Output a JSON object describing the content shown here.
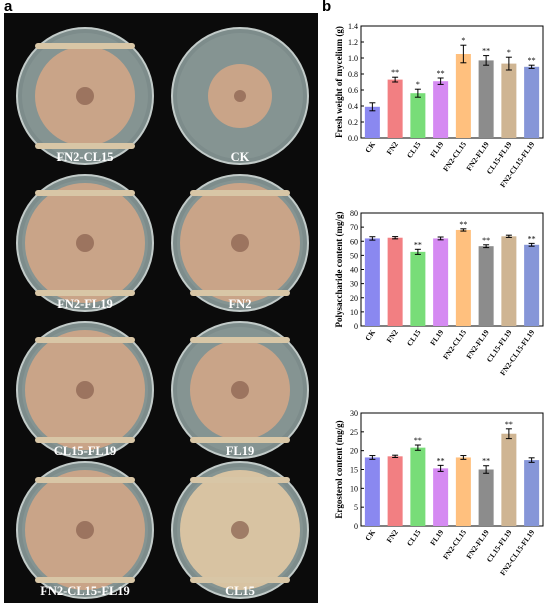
{
  "panel_a": {
    "letter": "a",
    "plates": [
      {
        "label": "FN2-CL15",
        "colony": "mid",
        "streaks": 2
      },
      {
        "label": "CK",
        "colony": "small",
        "streaks": 0
      },
      {
        "label": "FN2-FL19",
        "colony": "large",
        "streaks": 2
      },
      {
        "label": "FN2",
        "colony": "large",
        "streaks": 2
      },
      {
        "label": "CL15-FL19",
        "colony": "large",
        "streaks": 2
      },
      {
        "label": "FL19",
        "colony": "mid",
        "streaks": 2
      },
      {
        "label": "FN2-CL15-FL19",
        "colony": "large",
        "streaks": 2
      },
      {
        "label": "CL15",
        "colony": "large-pale",
        "streaks": 2
      }
    ],
    "colors": {
      "agar": "#7d8c8b",
      "colony": "#c9a488",
      "colony_center": "#8c6452",
      "streak": "#d8c6a6"
    }
  },
  "panel_b": {
    "letter": "b"
  },
  "chart_data": [
    {
      "type": "bar",
      "ylabel": "Fresh weight of mycelium (g)",
      "ylim": [
        0,
        1.4
      ],
      "yticks": [
        "0.0",
        "0.2",
        "0.4",
        "0.6",
        "0.8",
        "1.0",
        "1.2",
        "1.4"
      ],
      "categories": [
        "CK",
        "FN2",
        "CL15",
        "FL19",
        "FN2-CL15",
        "FN2-FL19",
        "CL15-FL19",
        "FN2-CL15-FL19"
      ],
      "values": [
        0.39,
        0.73,
        0.56,
        0.71,
        1.05,
        0.97,
        0.93,
        0.89
      ],
      "errors": [
        0.05,
        0.03,
        0.05,
        0.04,
        0.11,
        0.06,
        0.08,
        0.02
      ],
      "significance": [
        "",
        "**",
        "*",
        "**",
        "*",
        "**",
        "*",
        "**"
      ]
    },
    {
      "type": "bar",
      "ylabel": "Polysaccharide content (mg/g)",
      "ylim": [
        0,
        80
      ],
      "yticks": [
        "0",
        "10",
        "20",
        "30",
        "40",
        "50",
        "60",
        "70",
        "80"
      ],
      "categories": [
        "CK",
        "FN2",
        "CL15",
        "FL19",
        "FN2-CL15",
        "FN2-FL19",
        "CL15-FL19",
        "FN2-CL15-FL19"
      ],
      "values": [
        62,
        62.5,
        52.5,
        62,
        68,
        56.5,
        63.5,
        57.5
      ],
      "errors": [
        1.2,
        0.8,
        1.8,
        1.0,
        0.8,
        1.0,
        0.8,
        1.0
      ],
      "significance": [
        "",
        "",
        "**",
        "",
        "**",
        "**",
        "",
        "**"
      ]
    },
    {
      "type": "bar",
      "ylabel": "Ergosterol content (mg/g)",
      "ylim": [
        0,
        30
      ],
      "yticks": [
        "0",
        "5",
        "10",
        "15",
        "20",
        "25",
        "30"
      ],
      "categories": [
        "CK",
        "FN2",
        "CL15",
        "FL19",
        "FN2-CL15",
        "FN2-FL19",
        "CL15-FL19",
        "FN2-CL15-FL19"
      ],
      "values": [
        18.2,
        18.5,
        20.8,
        15.3,
        18.2,
        15.0,
        24.5,
        17.5
      ],
      "errors": [
        0.5,
        0.3,
        0.7,
        0.8,
        0.5,
        1.0,
        1.3,
        0.6
      ],
      "significance": [
        "",
        "",
        "**",
        "**",
        "",
        "**",
        "**",
        ""
      ]
    }
  ],
  "colors": [
    "#8a88f0",
    "#f27f82",
    "#78dd78",
    "#d58af2",
    "#ffc07e",
    "#8c8c8c",
    "#cfb593",
    "#8696d8"
  ]
}
